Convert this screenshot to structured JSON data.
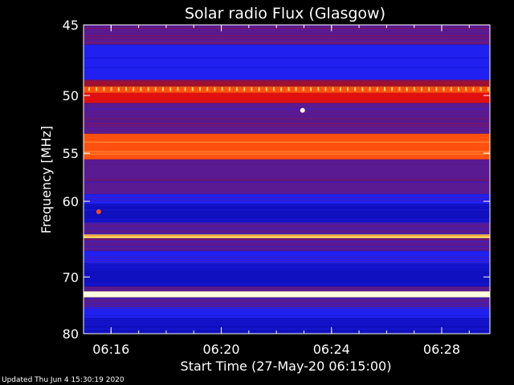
{
  "chart_data": {
    "type": "heatmap",
    "title": "Solar radio Flux (Glasgow)",
    "xlabel": "Start Time (27-May-20 06:15:00)",
    "ylabel": "Frequency [MHz]",
    "x_ticks": [
      "06:16",
      "06:20",
      "06:24",
      "06:28"
    ],
    "x_tick_minutes": [
      1,
      5,
      9,
      13
    ],
    "xlim_minutes": [
      0,
      14.75
    ],
    "y_ticks": [
      45,
      50,
      55,
      60,
      70,
      80
    ],
    "ylim": [
      45,
      80
    ],
    "y_scale": "reciprocal",
    "colormap": [
      "#1010c0",
      "#2020f0",
      "#5a1a90",
      "#a01030",
      "#e01010",
      "#ff5010",
      "#ffd060",
      "#ffffe0"
    ],
    "bands": [
      {
        "freq_start": 45.0,
        "freq_end": 46.3,
        "intensity": 0.35
      },
      {
        "freq_start": 46.3,
        "freq_end": 48.8,
        "intensity": 0.1
      },
      {
        "freq_start": 48.8,
        "freq_end": 49.3,
        "intensity": 0.38
      },
      {
        "freq_start": 49.3,
        "freq_end": 49.8,
        "intensity": 0.7
      },
      {
        "freq_start": 49.8,
        "freq_end": 50.6,
        "intensity": 0.55
      },
      {
        "freq_start": 50.6,
        "freq_end": 52.0,
        "intensity": 0.28
      },
      {
        "freq_start": 52.0,
        "freq_end": 53.2,
        "intensity": 0.33
      },
      {
        "freq_start": 53.2,
        "freq_end": 55.6,
        "intensity": 0.78
      },
      {
        "freq_start": 55.6,
        "freq_end": 57.8,
        "intensity": 0.32
      },
      {
        "freq_start": 57.8,
        "freq_end": 59.2,
        "intensity": 0.22
      },
      {
        "freq_start": 59.2,
        "freq_end": 60.3,
        "intensity": 0.18
      },
      {
        "freq_start": 60.3,
        "freq_end": 62.5,
        "intensity": 0.06
      },
      {
        "freq_start": 62.5,
        "freq_end": 64.0,
        "intensity": 0.28
      },
      {
        "freq_start": 64.0,
        "freq_end": 64.5,
        "intensity": 0.8
      },
      {
        "freq_start": 64.5,
        "freq_end": 66.2,
        "intensity": 0.26
      },
      {
        "freq_start": 66.2,
        "freq_end": 68.0,
        "intensity": 0.18
      },
      {
        "freq_start": 68.0,
        "freq_end": 71.5,
        "intensity": 0.05
      },
      {
        "freq_start": 71.5,
        "freq_end": 72.3,
        "intensity": 0.28
      },
      {
        "freq_start": 72.3,
        "freq_end": 73.3,
        "intensity": 1.0
      },
      {
        "freq_start": 73.3,
        "freq_end": 75.0,
        "intensity": 0.22
      },
      {
        "freq_start": 75.0,
        "freq_end": 77.0,
        "intensity": 0.18
      },
      {
        "freq_start": 77.0,
        "freq_end": 80.0,
        "intensity": 0.06
      }
    ],
    "features": [
      {
        "kind": "periodic-ticks",
        "freq": 49.5,
        "intensity": 0.9
      },
      {
        "kind": "spot",
        "minute": 7.95,
        "freq": 51.2,
        "intensity": 0.95
      },
      {
        "kind": "spot",
        "minute": 0.55,
        "freq": 61.2,
        "intensity": 0.72
      }
    ],
    "grid": false,
    "legend": "none"
  },
  "footer": {
    "updated": "Updated Thu Jun  4 15:30:19 2020"
  }
}
